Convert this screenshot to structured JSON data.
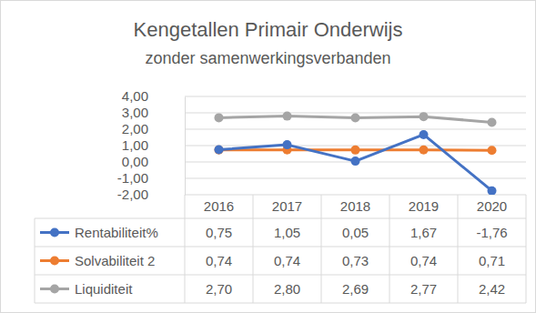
{
  "chart_data": {
    "type": "line",
    "title": "Kengetallen Primair Onderwijs",
    "subtitle": "zonder samenwerkingsverbanden",
    "categories": [
      "2016",
      "2017",
      "2018",
      "2019",
      "2020"
    ],
    "series": [
      {
        "name": "Rentabiliteit%",
        "color": "#4472c4",
        "marker": "circle",
        "values": [
          0.75,
          1.05,
          0.05,
          1.67,
          -1.76
        ],
        "value_labels": [
          "0,75",
          "1,05",
          "0,05",
          "1,67",
          "-1,76"
        ]
      },
      {
        "name": "Solvabiliteit 2",
        "color": "#ed7d31",
        "marker": "circle",
        "values": [
          0.74,
          0.74,
          0.73,
          0.74,
          0.71
        ],
        "value_labels": [
          "0,74",
          "0,74",
          "0,73",
          "0,74",
          "0,71"
        ]
      },
      {
        "name": "Liquiditeit",
        "color": "#a5a5a5",
        "marker": "circle",
        "values": [
          2.7,
          2.8,
          2.69,
          2.77,
          2.42
        ],
        "value_labels": [
          "2,70",
          "2,80",
          "2,69",
          "2,77",
          "2,42"
        ]
      }
    ],
    "ylim": [
      -2,
      4
    ],
    "yticks": [
      {
        "value": 4,
        "label": "4,00"
      },
      {
        "value": 3,
        "label": "3,00"
      },
      {
        "value": 2,
        "label": "2,00"
      },
      {
        "value": 1,
        "label": "1,00"
      },
      {
        "value": 0,
        "label": "0,00"
      },
      {
        "value": -1,
        "label": "-1,00"
      },
      {
        "value": -2,
        "label": "-2,00"
      }
    ],
    "grid": true
  }
}
